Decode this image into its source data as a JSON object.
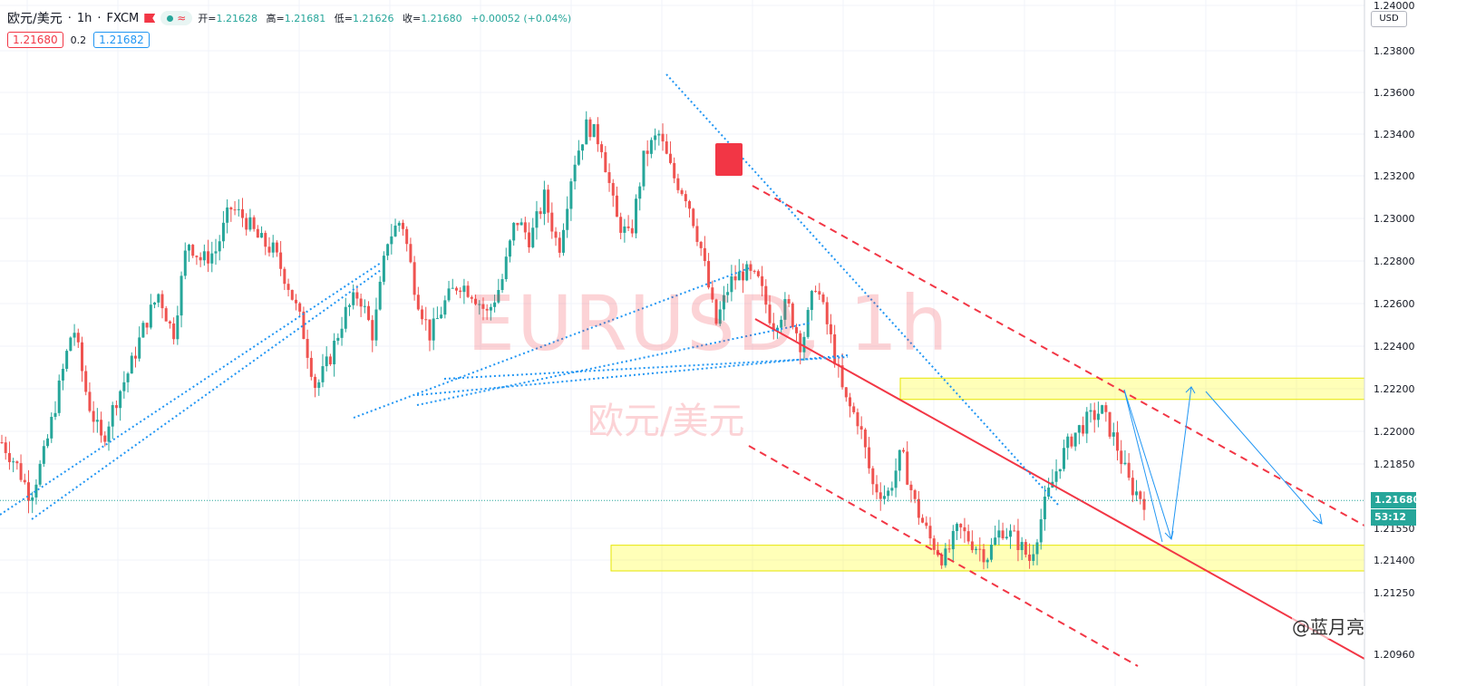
{
  "header": {
    "symbol": "欧元/美元",
    "interval": "1h",
    "broker": "FXCM",
    "ohlc": {
      "open_label": "开=",
      "open": "1.21628",
      "high_label": "高=",
      "high": "1.21681",
      "low_label": "低=",
      "low": "1.21626",
      "close_label": "收=",
      "close": "1.21680",
      "change": "+0.00052 (+0.04%)"
    }
  },
  "quote": {
    "sell": "1.21680",
    "spread": "0.2",
    "buy": "1.21682"
  },
  "watermark": {
    "ticker": "EURUSD, 1h",
    "name": "欧元/美元"
  },
  "axis": {
    "currency": "USD",
    "last_price": "1.21680",
    "countdown": "53:12"
  },
  "brand": "@蓝月亮",
  "colors": {
    "up": "#26a69a",
    "down": "#ef5350",
    "trend": "#f23645",
    "guide": "#2196f3",
    "zone": "#ffff00"
  },
  "chart_data": {
    "type": "candlestick",
    "y_axis_ticks": [
      1.24,
      1.238,
      1.236,
      1.234,
      1.232,
      1.23,
      1.228,
      1.226,
      1.224,
      1.222,
      1.22,
      1.2185,
      1.2155,
      1.214,
      1.2125,
      1.2096
    ],
    "y_axis_tick_labels": [
      "1.24000",
      "1.23800",
      "1.23600",
      "1.23400",
      "1.23200",
      "1.23000",
      "1.22800",
      "1.22600",
      "1.22400",
      "1.22200",
      "1.22000",
      "1.21850",
      "1.21550",
      "1.21400",
      "1.21250",
      "1.20960"
    ],
    "close_path": [
      1.2195,
      1.2185,
      1.217,
      1.219,
      1.222,
      1.225,
      1.2215,
      1.2195,
      1.2215,
      1.223,
      1.225,
      1.2265,
      1.2245,
      1.229,
      1.228,
      1.2285,
      1.2305,
      1.23,
      1.229,
      1.2285,
      1.227,
      1.225,
      1.222,
      1.2235,
      1.2255,
      1.2265,
      1.2245,
      1.229,
      1.23,
      1.2265,
      1.2245,
      1.226,
      1.227,
      1.2265,
      1.2255,
      1.227,
      1.23,
      1.229,
      1.231,
      1.2285,
      1.2325,
      1.2345,
      1.2335,
      1.23,
      1.229,
      1.233,
      1.234,
      1.232,
      1.231,
      1.2285,
      1.225,
      1.227,
      1.2275,
      1.227,
      1.225,
      1.226,
      1.224,
      1.227,
      1.2245,
      1.2215,
      1.2205,
      1.2175,
      1.217,
      1.219,
      1.2165,
      1.215,
      1.214,
      1.2155,
      1.2148,
      1.2142,
      1.2155,
      1.215,
      1.214,
      1.2165,
      1.2185,
      1.2198,
      1.2205,
      1.221,
      1.2195,
      1.2175,
      1.2168
    ],
    "zones": [
      {
        "from": 1.2215,
        "to": 1.2225
      },
      {
        "from": 1.2135,
        "to": 1.2147
      }
    ],
    "last_price": 1.2168,
    "grid": true
  }
}
